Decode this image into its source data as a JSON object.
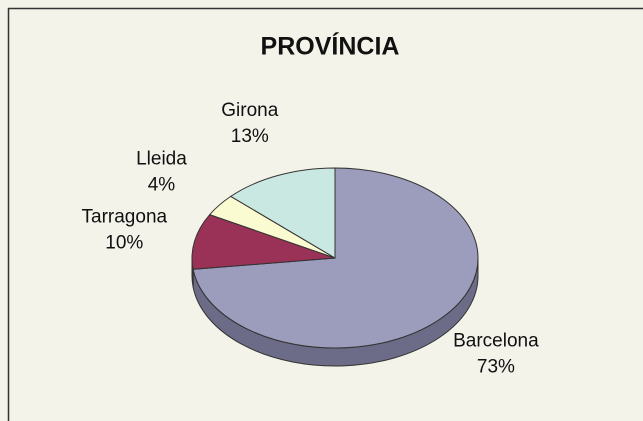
{
  "chart_data": {
    "type": "pie",
    "title": "PROVÍNCIA",
    "categories": [
      "Barcelona",
      "Tarragona",
      "Lleida",
      "Girona"
    ],
    "values": [
      73,
      10,
      4,
      13
    ],
    "value_labels": [
      "73%",
      "10%",
      "4%",
      "13%"
    ],
    "colors": [
      "#9c9cbc",
      "#9a3258",
      "#fbfbd2",
      "#cae8e2"
    ],
    "side_colors": [
      "#6c6c88",
      "#6a2240",
      "#b8b890",
      "#8eaaa4"
    ]
  }
}
